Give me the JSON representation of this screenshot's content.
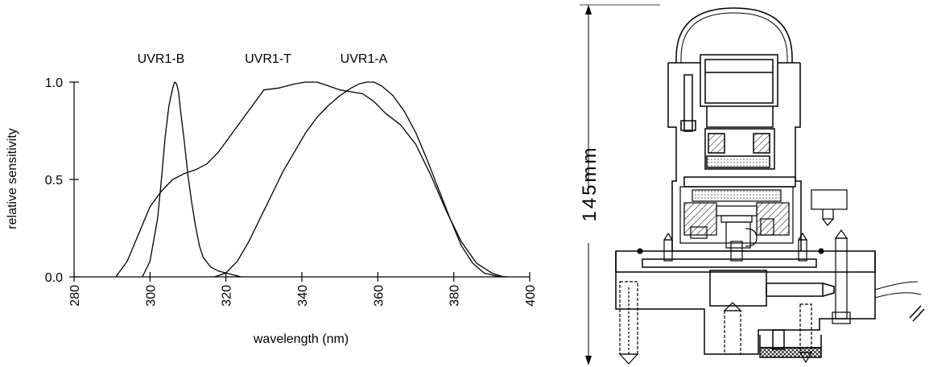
{
  "chart_data": {
    "type": "line",
    "xlabel": "wavelength (nm)",
    "ylabel": "relative sensitivity",
    "xlim": [
      280,
      400
    ],
    "ylim": [
      0,
      1.0
    ],
    "x_ticks": [
      "280",
      "300",
      "320",
      "340",
      "360",
      "380",
      "400"
    ],
    "y_ticks": [
      "0.0",
      "0.5",
      "1.0"
    ],
    "grid": false,
    "series": [
      {
        "name": "UVR1-B",
        "x": [
          298,
          300,
          302,
          303,
          304,
          305,
          306,
          306.5,
          307,
          307.5,
          308,
          309,
          310,
          311,
          312,
          313,
          314,
          316,
          318,
          320,
          322,
          324
        ],
        "y": [
          0,
          0.08,
          0.3,
          0.5,
          0.72,
          0.88,
          0.97,
          1.0,
          0.99,
          0.95,
          0.86,
          0.7,
          0.52,
          0.38,
          0.26,
          0.16,
          0.1,
          0.05,
          0.03,
          0.02,
          0.01,
          0
        ]
      },
      {
        "name": "UVR1-T",
        "x": [
          291,
          294,
          297,
          300,
          303,
          306,
          309,
          312,
          315,
          318,
          321,
          324,
          327,
          330,
          334,
          338,
          341,
          344,
          347,
          350,
          353,
          356,
          359,
          362,
          366,
          370,
          374,
          378,
          382,
          386,
          390,
          393
        ],
        "y": [
          0,
          0.08,
          0.22,
          0.36,
          0.44,
          0.5,
          0.53,
          0.55,
          0.58,
          0.64,
          0.72,
          0.8,
          0.88,
          0.96,
          0.97,
          0.99,
          1.0,
          1.0,
          0.98,
          0.96,
          0.95,
          0.94,
          0.9,
          0.84,
          0.78,
          0.68,
          0.52,
          0.34,
          0.18,
          0.07,
          0.02,
          0
        ]
      },
      {
        "name": "UVR1-A",
        "x": [
          317,
          320,
          323,
          326,
          329,
          332,
          335,
          338,
          341,
          344,
          347,
          350,
          353,
          355,
          357,
          359,
          361,
          364,
          367,
          370,
          373,
          376,
          379,
          382,
          385,
          388,
          391,
          394
        ],
        "y": [
          0,
          0.02,
          0.08,
          0.18,
          0.3,
          0.42,
          0.54,
          0.64,
          0.74,
          0.82,
          0.88,
          0.93,
          0.97,
          0.99,
          1.0,
          1.0,
          0.98,
          0.93,
          0.85,
          0.74,
          0.6,
          0.45,
          0.3,
          0.16,
          0.07,
          0.02,
          0.005,
          0
        ]
      }
    ]
  },
  "device": {
    "dimension_label": "145mm"
  }
}
